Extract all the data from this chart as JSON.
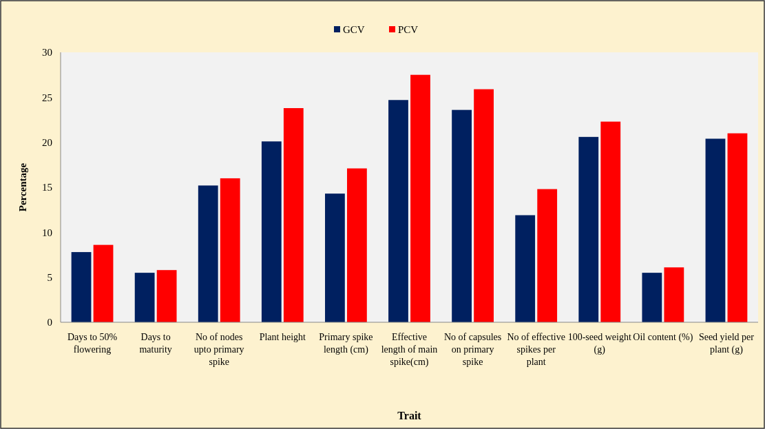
{
  "chart_data": {
    "type": "bar",
    "xlabel": "Trait",
    "ylabel": "Percentage",
    "categories": [
      "Days to 50% flowering",
      "Days to maturity",
      "No of nodes upto primary spike",
      "Plant height",
      "Primary spike length (cm)",
      "Effective length of main spike(cm)",
      "No of capsules on primary spike",
      "No of effective spikes per plant",
      "100-seed weight (g)",
      "Oil content (%)",
      "Seed yield per plant (g)"
    ],
    "series": [
      {
        "name": "GCV",
        "color": "#002060",
        "values": [
          7.8,
          5.5,
          15.2,
          20.1,
          14.3,
          24.7,
          23.6,
          11.9,
          20.6,
          5.5,
          20.4
        ]
      },
      {
        "name": "PCV",
        "color": "#ff0000",
        "values": [
          8.6,
          5.8,
          16.0,
          23.8,
          17.1,
          27.5,
          25.9,
          14.8,
          22.3,
          6.1,
          21.0
        ]
      }
    ],
    "ylim": [
      0,
      30
    ],
    "yticks": [
      0,
      5,
      10,
      15,
      20,
      25,
      30
    ],
    "grid": false,
    "legend": "top"
  }
}
